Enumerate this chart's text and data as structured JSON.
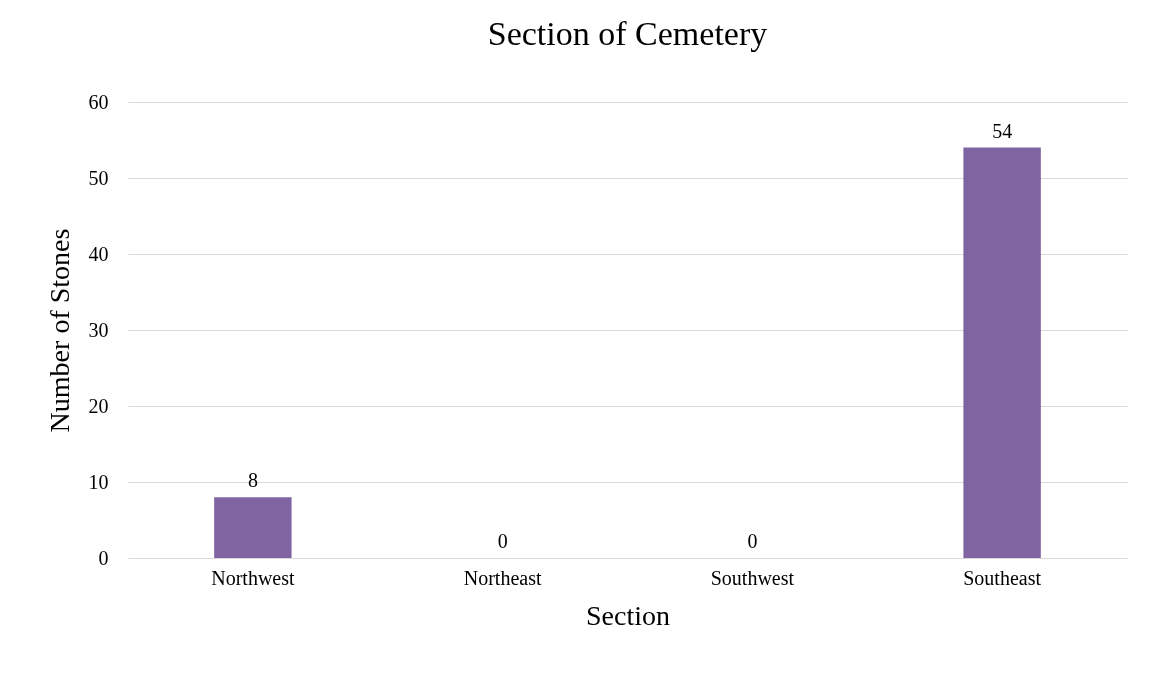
{
  "chart_data": {
    "type": "bar",
    "title": "Section of Cemetery",
    "xlabel": "Section",
    "ylabel": "Number of Stones",
    "categories": [
      "Northwest",
      "Northeast",
      "Southwest",
      "Southeast"
    ],
    "values": [
      8,
      0,
      0,
      54
    ],
    "color": "#8064a2",
    "ylim": [
      0,
      60
    ],
    "yticks": [
      0,
      10,
      20,
      30,
      40,
      50,
      60
    ],
    "grid": "y",
    "data_labels": true
  }
}
